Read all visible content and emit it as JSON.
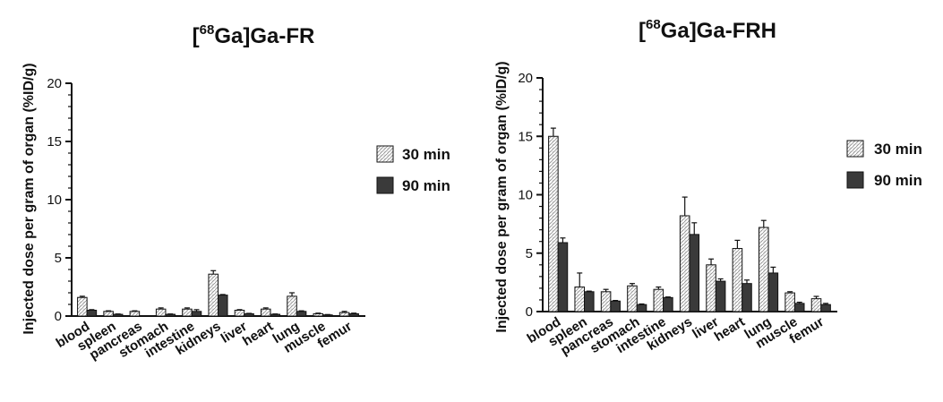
{
  "chart_data": [
    {
      "type": "bar",
      "title_prefix": "[",
      "title_sup": "68",
      "title_main": "Ga]Ga-FR",
      "ylabel": "Injected dose per gram of organ (%ID/g)",
      "xlabel": "",
      "ylim": [
        0,
        20
      ],
      "yticks": [
        "0",
        "5",
        "10",
        "15",
        "20"
      ],
      "categories": [
        "blood",
        "spleen",
        "pancreas",
        "stomach",
        "intestine",
        "kidneys",
        "liver",
        "heart",
        "lung",
        "muscle",
        "femur"
      ],
      "series": [
        {
          "name": "30 min",
          "values": [
            1.6,
            0.4,
            0.4,
            0.6,
            0.6,
            3.6,
            0.5,
            0.6,
            1.7,
            0.2,
            0.3
          ],
          "errors": [
            0.1,
            0.05,
            0.05,
            0.1,
            0.1,
            0.3,
            0.05,
            0.1,
            0.3,
            0.05,
            0.1
          ]
        },
        {
          "name": "90 min",
          "values": [
            0.5,
            0.15,
            0.0,
            0.15,
            0.4,
            1.8,
            0.2,
            0.15,
            0.4,
            0.1,
            0.2
          ],
          "errors": [
            0.05,
            0.03,
            0.0,
            0.03,
            0.15,
            0.05,
            0.03,
            0.03,
            0.05,
            0.03,
            0.05
          ]
        }
      ],
      "legend_position": "right",
      "grid": false
    },
    {
      "type": "bar",
      "title_prefix": "[",
      "title_sup": "68",
      "title_main": "Ga]Ga-FRH",
      "ylabel": "Injected dose per gram of organ (%ID/g)",
      "xlabel": "",
      "ylim": [
        0,
        20
      ],
      "yticks": [
        "0",
        "5",
        "10",
        "15",
        "20"
      ],
      "categories": [
        "blood",
        "spleen",
        "pancreas",
        "stomach",
        "intestine",
        "kidneys",
        "liver",
        "heart",
        "lung",
        "muscle",
        "femur"
      ],
      "series": [
        {
          "name": "30 min",
          "values": [
            15.0,
            2.1,
            1.7,
            2.2,
            1.9,
            8.2,
            4.0,
            5.4,
            7.2,
            1.6,
            1.1
          ],
          "errors": [
            0.7,
            1.2,
            0.2,
            0.2,
            0.2,
            1.6,
            0.5,
            0.7,
            0.6,
            0.1,
            0.2
          ]
        },
        {
          "name": "90 min",
          "values": [
            5.9,
            1.7,
            0.9,
            0.6,
            1.2,
            6.6,
            2.6,
            2.4,
            3.3,
            0.7,
            0.6
          ],
          "errors": [
            0.4,
            0.05,
            0.05,
            0.05,
            0.05,
            1.0,
            0.2,
            0.3,
            0.5,
            0.1,
            0.1
          ]
        }
      ],
      "legend_position": "right",
      "grid": false
    }
  ],
  "colors": {
    "bar_30": "#ffffff",
    "bar_90": "#3a3a3a",
    "axis": "#111111"
  }
}
